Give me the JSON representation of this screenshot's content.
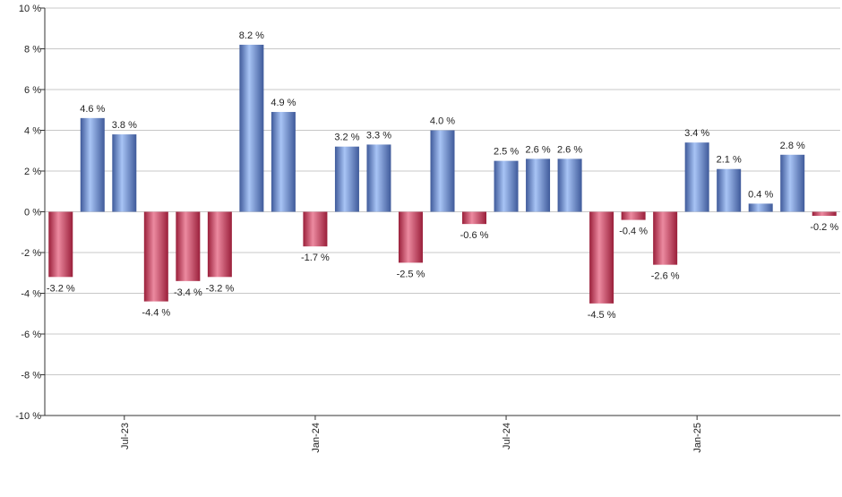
{
  "chart_data": {
    "type": "bar",
    "title": "",
    "xlabel": "",
    "ylabel": "",
    "ylim": [
      -10,
      10
    ],
    "y_ticks": [
      10,
      8,
      6,
      4,
      2,
      0,
      -2,
      -4,
      -6,
      -8,
      -10
    ],
    "y_tick_labels": [
      "10 %",
      "8 %",
      "6 %",
      "4 %",
      "2 %",
      "0 %",
      "-2 %",
      "-4 %",
      "-6 %",
      "-8 %",
      "-10 %"
    ],
    "grid": "horizontal",
    "values": [
      -3.2,
      4.6,
      3.8,
      -4.4,
      -3.4,
      -3.2,
      8.2,
      4.9,
      -1.7,
      3.2,
      3.3,
      -2.5,
      4.0,
      -0.6,
      2.5,
      2.6,
      2.6,
      -4.5,
      -0.4,
      -2.6,
      3.4,
      2.1,
      0.4,
      2.8,
      -0.2
    ],
    "data_labels": [
      "-3.2 %",
      "4.6 %",
      "3.8 %",
      "-4.4 %",
      "-3.4 %",
      "-3.2 %",
      "8.2 %",
      "4.9 %",
      "-1.7 %",
      "3.2 %",
      "3.3 %",
      "-2.5 %",
      "4.0 %",
      "-0.6 %",
      "2.5 %",
      "2.6 %",
      "2.6 %",
      "-4.5 %",
      "-0.4 %",
      "-2.6 %",
      "3.4 %",
      "2.1 %",
      "0.4 %",
      "2.8 %",
      "-0.2 %"
    ],
    "x_tick_labels": [
      {
        "label": "Jul-23",
        "bar_index": 2
      },
      {
        "label": "Jan-24",
        "bar_index": 8
      },
      {
        "label": "Jul-24",
        "bar_index": 14
      },
      {
        "label": "Jan-25",
        "bar_index": 20
      }
    ],
    "colors": {
      "positive": "#7f9fdf",
      "positive_dark": "#3f5a9a",
      "positive_light": "#a8c4f5",
      "negative": "#d94f70",
      "negative_dark": "#9a1f3a",
      "negative_light": "#ec8aa0",
      "grid": "#c8c8c8",
      "axis": "#333333"
    }
  }
}
